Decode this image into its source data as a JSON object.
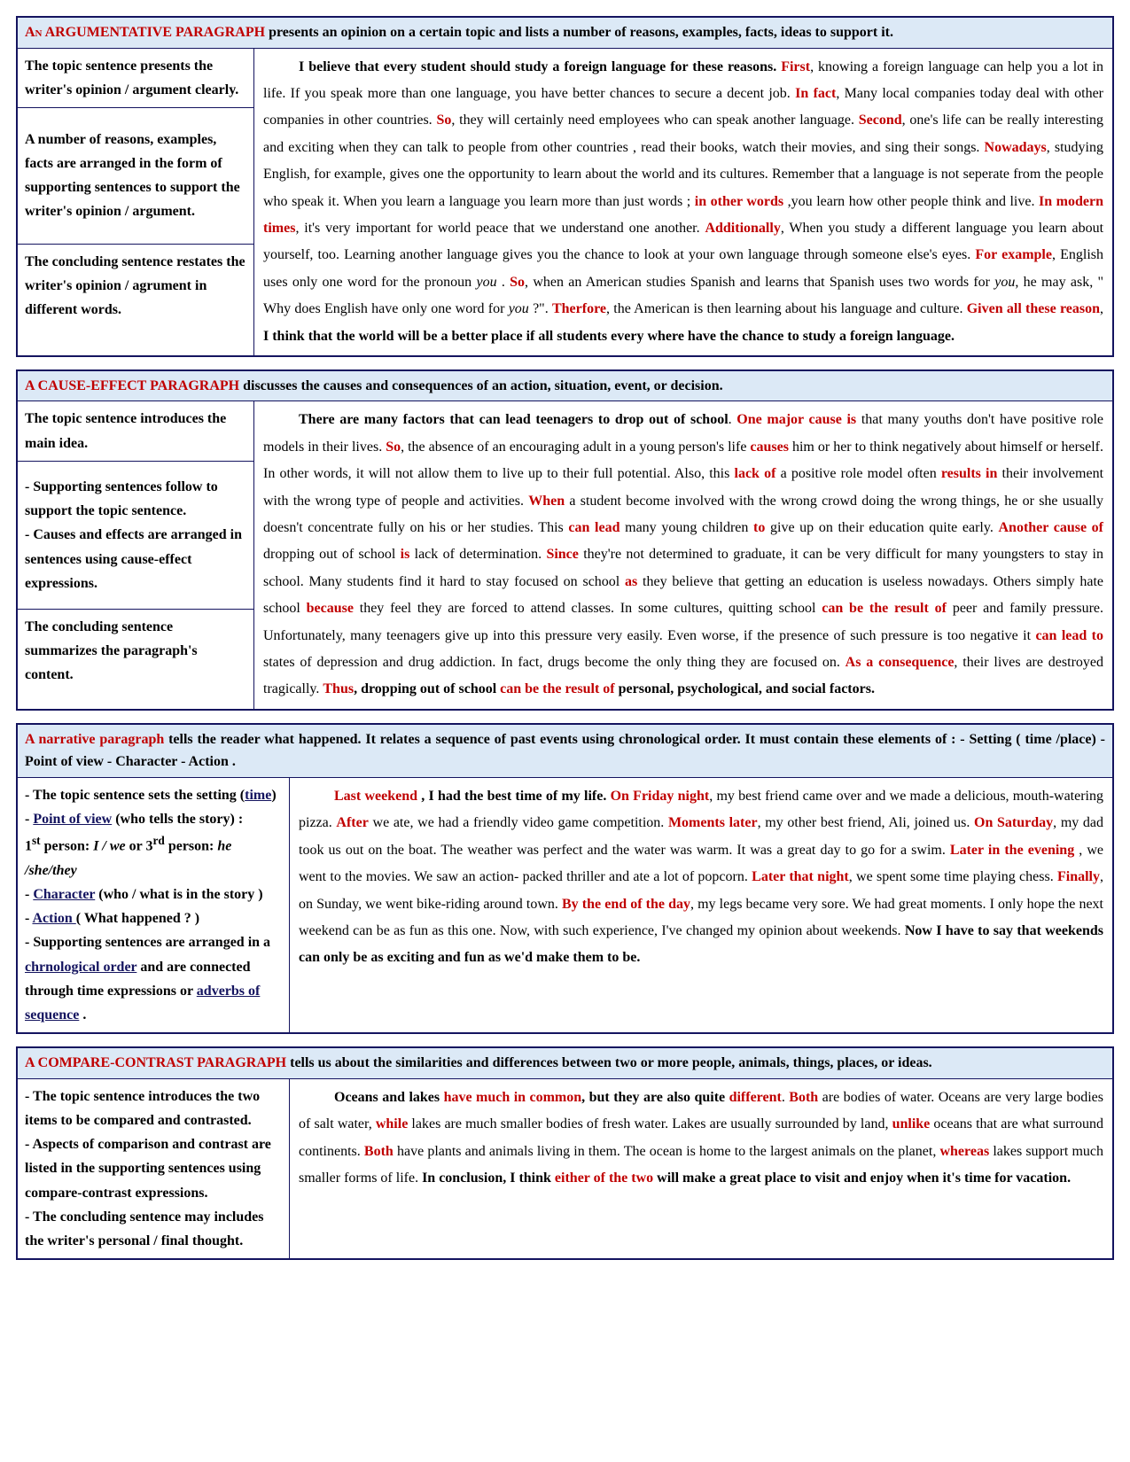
{
  "colors": {
    "header_bg": "#dce9f6",
    "border": "#14145f",
    "highlight": "#c00000",
    "text": "#000000",
    "underline": "#14145f"
  },
  "typography": {
    "font_family": "Times New Roman",
    "base_fontsize": 16,
    "line_height_body": 1.9,
    "line_height_cell": 1.7
  },
  "sections": [
    {
      "title": "An  ARGUMENTATIVE PARAGRAPH",
      "title_style": "smallcaps",
      "header_rest": "  presents an opinion on a  certain  topic  and lists a number of reasons, examples, facts, ideas to support it.",
      "left_width": 266,
      "left_cells": [
        "The topic sentence presents the writer's opinion / argument clearly.",
        "A number of reasons, examples, facts are arranged in the form of supporting sentences to support the writer's opinion / argument.",
        "The concluding sentence restates the writer's opinion / agrument in different words."
      ],
      "left_cell_flex": [
        "0",
        "1",
        "0"
      ],
      "paragraph": [
        {
          "t": "indent"
        },
        {
          "t": "b",
          "v": "I believe that every student should study a foreign language for these reasons. "
        },
        {
          "t": "r",
          "v": "First"
        },
        {
          "t": "n",
          "v": ", knowing a foreign language can help you a lot in life. If you speak more than one language, you have  better chances to secure a decent job. "
        },
        {
          "t": "r",
          "v": "In fact"
        },
        {
          "t": "n",
          "v": ", Many local companies today deal with other companies in other countries. "
        },
        {
          "t": "r",
          "v": "So"
        },
        {
          "t": "n",
          "v": ", they will certainly need employees who can speak another language.  "
        },
        {
          "t": "r",
          "v": "Second"
        },
        {
          "t": "n",
          "v": ", one's  life can be really interesting and exciting when they can talk to people from other countries , read their books, watch their movies, and sing their songs. "
        },
        {
          "t": "r",
          "v": "Nowadays"
        },
        {
          "t": "n",
          "v": ", studying English, for example,  gives one the opportunity to learn about the world and its cultures. Remember that a language is not seperate from the people who speak it. When you learn a language you learn more than just words ; "
        },
        {
          "t": "r",
          "v": "in other words"
        },
        {
          "t": "n",
          "v": " ,you learn how other people think and live. "
        },
        {
          "t": "r",
          "v": "In modern times"
        },
        {
          "t": "n",
          "v": ", it's very important for world peace that we understand one another. "
        },
        {
          "t": "r",
          "v": "Additionally"
        },
        {
          "t": "n",
          "v": ", When you study a different language you learn about yourself, too.  Learning another language gives you the chance to look at your own language  through someone else's eyes. "
        },
        {
          "t": "r",
          "v": "For example"
        },
        {
          "t": "n",
          "v": ", English uses only one word for the pronoun "
        },
        {
          "t": "i",
          "v": "you"
        },
        {
          "t": "n",
          "v": " . "
        },
        {
          "t": "r",
          "v": "So"
        },
        {
          "t": "n",
          "v": ", when an American studies Spanish and learns that Spanish uses two words for "
        },
        {
          "t": "i",
          "v": "you"
        },
        {
          "t": "n",
          "v": ", he may ask, \" Why does English have only one word for "
        },
        {
          "t": "i",
          "v": "you"
        },
        {
          "t": "n",
          "v": " ?\". "
        },
        {
          "t": "r",
          "v": "Therfore"
        },
        {
          "t": "n",
          "v": ", the American is then learning about his language and culture. "
        },
        {
          "t": "r",
          "v": "Given all these reason"
        },
        {
          "t": "n",
          "v": ", "
        },
        {
          "t": "b",
          "v": "I think that the world will be a better place if all students every where have  the chance to study a foreign language."
        }
      ]
    },
    {
      "title": "A CAUSE-EFFECT PARAGRAPH",
      "header_rest": "  discusses the causes and consequences of an action, situation, event, or decision.",
      "left_width": 266,
      "left_cells": [
        "The topic sentence introduces the main idea.",
        "- Supporting sentences follow to support the topic sentence.\n- Causes and effects are arranged in sentences using cause-effect expressions.",
        "The concluding sentence summarizes the paragraph's content."
      ],
      "left_cell_flex": [
        "0",
        "1",
        "0"
      ],
      "paragraph": [
        {
          "t": "indent"
        },
        {
          "t": "b",
          "v": "There are many factors that can lead teenagers to drop out of school"
        },
        {
          "t": "n",
          "v": ".  "
        },
        {
          "t": "r",
          "v": "One major cause  is"
        },
        {
          "t": "n",
          "v": " that many youths don't have positive role models in their lives.  "
        },
        {
          "t": "r",
          "v": "So"
        },
        {
          "t": "n",
          "v": ", the absence of an encouraging adult in a young person's life  "
        },
        {
          "t": "r",
          "v": "causes"
        },
        {
          "t": "n",
          "v": " him or her  to think negatively about himself or herself.  In other words, it will not  allow them to live up to their full potential.  Also, this "
        },
        {
          "t": "r",
          "v": "lack of"
        },
        {
          "t": "n",
          "v": " a positive role model often "
        },
        {
          "t": "r",
          "v": "results in"
        },
        {
          "t": "n",
          "v": " their involvement with the wrong type of people and activities.  "
        },
        {
          "t": "r",
          "v": "When"
        },
        {
          "t": "n",
          "v": " a student become involved with the wrong crowd doing the wrong things, he or she usually doesn't concentrate  fully on his or her studies. This "
        },
        {
          "t": "r",
          "v": "can lead"
        },
        {
          "t": "n",
          "v": " many young children "
        },
        {
          "t": "r",
          "v": "to"
        },
        {
          "t": "n",
          "v": " give up on their education quite early. "
        },
        {
          "t": "r",
          "v": "Another cause of"
        },
        {
          "t": "n",
          "v": " dropping out of school "
        },
        {
          "t": "r",
          "v": "is"
        },
        {
          "t": "n",
          "v": " lack of determination. "
        },
        {
          "t": "r",
          "v": "Since"
        },
        {
          "t": "n",
          "v": " they're not determined to graduate, it can be very difficult for many youngsters  to stay in school. Many students find it hard to stay focused on school  "
        },
        {
          "t": "r",
          "v": "as"
        },
        {
          "t": "n",
          "v": "  they believe that getting an education is useless nowadays. Others simply hate school "
        },
        {
          "t": "r",
          "v": "because"
        },
        {
          "t": "n",
          "v": "  they feel they are forced to attend classes.  In some cultures, quitting school "
        },
        {
          "t": "r",
          "v": "can be the result of"
        },
        {
          "t": "n",
          "v": " peer and family pressure. Unfortunately,  many teenagers give up into this pressure very easily.  Even worse, if the presence of such pressure is too negative it  "
        },
        {
          "t": "r",
          "v": "can lead  to"
        },
        {
          "t": "n",
          "v": " states of depression and drug addiction. In fact,  drugs become the only thing they are focused on.  "
        },
        {
          "t": "r",
          "v": "As a consequence"
        },
        {
          "t": "n",
          "v": ", their lives are destroyed tragically. "
        },
        {
          "t": "r",
          "v": "Thus"
        },
        {
          "t": "b",
          "v": ", dropping out of school "
        },
        {
          "t": "r",
          "v": "can be the result of"
        },
        {
          "t": "b",
          "v": " personal, psychological, and social factors."
        }
      ]
    },
    {
      "title": "A  narrative  paragraph",
      "header_rest": " tells the reader what  happened. It relates a sequence of  past events using chronological order. It  must contain these elements of :  - Setting ( time /place)     - Point of view    - Character     - Action .",
      "header_justify": true,
      "left_width": 306,
      "left_cells_rich": [
        [
          {
            "t": "n",
            "v": "- The topic sentence sets the setting  ("
          },
          {
            "t": "u",
            "v": "time"
          },
          {
            "t": "n",
            "v": ")"
          },
          {
            "t": "br"
          },
          {
            "t": "n",
            "v": "- "
          },
          {
            "t": "u",
            "v": "Point of view"
          },
          {
            "t": "n",
            "v": " (who tells the story) :"
          },
          {
            "t": "br"
          },
          {
            "t": "n",
            "v": "1"
          },
          {
            "t": "sup",
            "v": "st"
          },
          {
            "t": "n",
            "v": " person: "
          },
          {
            "t": "bi",
            "v": "I / we"
          },
          {
            "t": "n",
            "v": " or 3"
          },
          {
            "t": "sup",
            "v": "rd"
          },
          {
            "t": "n",
            "v": " person: "
          },
          {
            "t": "bi",
            "v": "he /she/they"
          },
          {
            "t": "br"
          },
          {
            "t": "n",
            "v": "- "
          },
          {
            "t": "u",
            "v": "Character"
          },
          {
            "t": "n",
            "v": " (who / what  is in the story )"
          },
          {
            "t": "br"
          },
          {
            "t": "n",
            "v": "- "
          },
          {
            "t": "u",
            "v": "Action "
          },
          {
            "t": "n",
            "v": "( What happened ? )"
          },
          {
            "t": "br"
          },
          {
            "t": "n",
            "v": "- Supporting sentences are arranged in a "
          },
          {
            "t": "u",
            "v": "chrnological order"
          },
          {
            "t": "n",
            "v": " and are connected through  time expressions or "
          },
          {
            "t": "u",
            "v": "adverbs of sequence"
          },
          {
            "t": "n",
            "v": " ."
          }
        ]
      ],
      "paragraph": [
        {
          "t": "indent"
        },
        {
          "t": "r",
          "v": "Last weekend "
        },
        {
          "t": "b",
          "v": ", I had the best time of my life."
        },
        {
          "t": "n",
          "v": "  "
        },
        {
          "t": "r",
          "v": "On Friday night"
        },
        {
          "t": "n",
          "v": ", my best friend came over and we made a delicious, mouth-watering pizza.  "
        },
        {
          "t": "r",
          "v": "After"
        },
        {
          "t": "n",
          "v": " we ate, we had a friendly video game competition. "
        },
        {
          "t": "r",
          "v": "Moments later"
        },
        {
          "t": "n",
          "v": ", my other best friend, Ali, joined us.  "
        },
        {
          "t": "r",
          "v": "On Saturday"
        },
        {
          "t": "n",
          "v": ", my dad took us out on the boat. The weather was perfect and the water was warm. It was a great day to go for a swim. "
        },
        {
          "t": "r",
          "v": "Later in the evening"
        },
        {
          "t": "n",
          "v": " , we went to the movies. We saw an action- packed thriller and ate a lot of popcorn. "
        },
        {
          "t": "r",
          "v": "Later that night"
        },
        {
          "t": "n",
          "v": ", we spent some time playing chess.  "
        },
        {
          "t": "r",
          "v": "Finally"
        },
        {
          "t": "n",
          "v": ", on Sunday, we went bike-riding around town. "
        },
        {
          "t": "r",
          "v": "By the end of the day"
        },
        {
          "t": "n",
          "v": ", my legs became very sore. We had great moments.  I only hope the next weekend can be as fun as this one. Now, with such experience, I've changed my opinion about weekends. "
        },
        {
          "t": "b",
          "v": "Now I have to say  that weekends can only be as exciting and fun as we'd  make them to be."
        }
      ]
    },
    {
      "title": "A COMPARE-CONTRAST PARAGRAPH",
      "header_rest": " tells us about the similarities and  differences between two or more people, animals,  things, places, or ideas.",
      "left_width": 306,
      "left_cells": [
        "- The topic sentence introduces the two items to be compared and contrasted.\n- Aspects of comparison and contrast are listed in the supporting sentences  using compare-contrast expressions.\n- The concluding sentence may includes the writer's personal / final  thought."
      ],
      "paragraph": [
        {
          "t": "indent"
        },
        {
          "t": "b",
          "v": "Oceans and lakes "
        },
        {
          "t": "r",
          "v": "have much in common"
        },
        {
          "t": "b",
          "v": ", but they are also quite "
        },
        {
          "t": "r",
          "v": "different"
        },
        {
          "t": "n",
          "v": ". "
        },
        {
          "t": "r",
          "v": "Both"
        },
        {
          "t": "n",
          "v": " are bodies of water. Oceans are very large bodies of salt water, "
        },
        {
          "t": "r",
          "v": "while"
        },
        {
          "t": "n",
          "v": " lakes are much smaller bodies of fresh water. Lakes are usually surrounded by land, "
        },
        {
          "t": "r",
          "v": "unlike "
        },
        {
          "t": "n",
          "v": "oceans that are what surround continents. "
        },
        {
          "t": "r",
          "v": "Both"
        },
        {
          "t": "n",
          "v": " have plants and animals living in them. The ocean is home to the largest animals on the planet, "
        },
        {
          "t": "r",
          "v": "whereas"
        },
        {
          "t": "n",
          "v": " lakes support much smaller forms of life.  "
        },
        {
          "t": "b",
          "v": "In conclusion, I think "
        },
        {
          "t": "r",
          "v": "either of the two"
        },
        {
          "t": "b",
          "v": " will make a great place to visit and enjoy when it's time for vacation."
        }
      ]
    }
  ]
}
